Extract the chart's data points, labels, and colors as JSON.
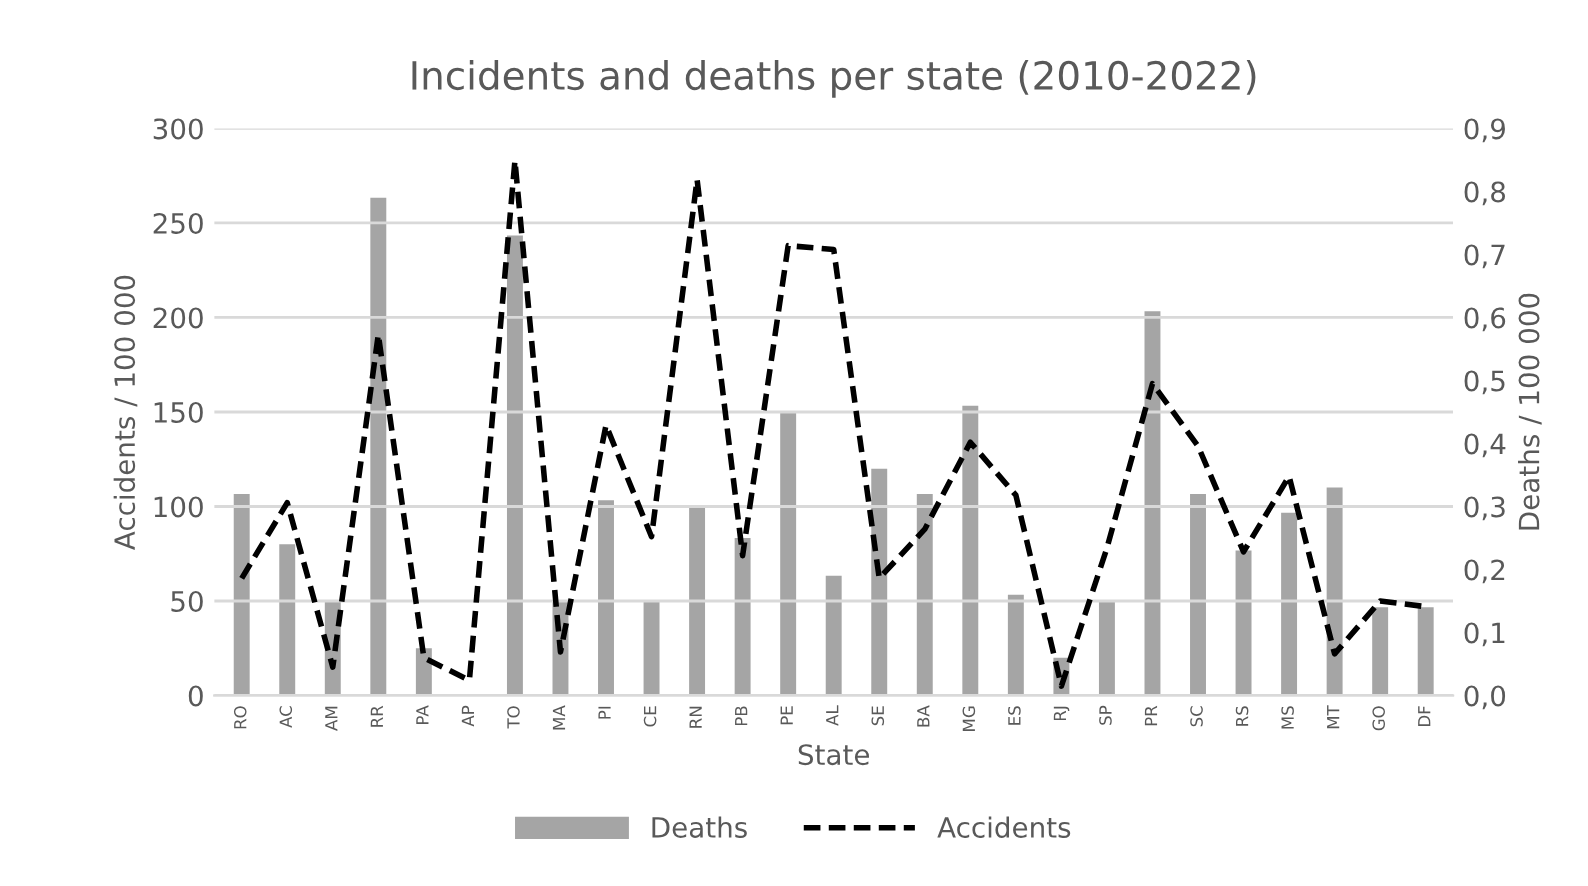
{
  "chart_data": {
    "type": "bar",
    "title": "Incidents and deaths per state (2010-2022)",
    "xlabel": "State",
    "ylabel": "Accidents / 100 000",
    "y2label": "Deaths / 100 000",
    "categories": [
      "RO",
      "AC",
      "AM",
      "RR",
      "PA",
      "AP",
      "TO",
      "MA",
      "PI",
      "CE",
      "RN",
      "PB",
      "PE",
      "AL",
      "SE",
      "BA",
      "MG",
      "ES",
      "RJ",
      "SP",
      "PR",
      "SC",
      "RS",
      "MS",
      "MT",
      "GO",
      "DF"
    ],
    "series": [
      {
        "name": "Deaths",
        "axis": "y2",
        "color": "#a5a5a5",
        "values": [
          0.32,
          0.24,
          0.15,
          0.79,
          0.075,
          0,
          0.73,
          0.15,
          0.31,
          0.15,
          0.3,
          0.25,
          0.45,
          0.19,
          0.36,
          0.32,
          0.46,
          0.16,
          0.06,
          0.15,
          0.61,
          0.32,
          0.23,
          0.29,
          0.33,
          0.14,
          0.14
        ]
      },
      {
        "name": "Accidents",
        "type": "line",
        "axis": "y",
        "color": "#000000",
        "line_style": "dashed",
        "values": [
          62,
          102,
          15,
          191,
          20,
          8,
          283,
          23,
          143,
          84,
          273,
          74,
          238,
          236,
          62,
          88,
          134,
          106,
          5,
          78,
          165,
          132,
          76,
          116,
          22,
          50,
          47
        ]
      }
    ],
    "ylim": [
      0,
      300
    ],
    "yticks": [
      0,
      50,
      100,
      150,
      200,
      250,
      300
    ],
    "y2lim": [
      0,
      0.9
    ],
    "y2ticks": [
      {
        "value": 0,
        "label": "0,0"
      },
      {
        "value": 0.1,
        "label": "0,1"
      },
      {
        "value": 0.2,
        "label": "0,2"
      },
      {
        "value": 0.3,
        "label": "0,3"
      },
      {
        "value": 0.4,
        "label": "0,4"
      },
      {
        "value": 0.5,
        "label": "0,5"
      },
      {
        "value": 0.6,
        "label": "0,6"
      },
      {
        "value": 0.7,
        "label": "0,7"
      },
      {
        "value": 0.8,
        "label": "0,8"
      },
      {
        "value": 0.9,
        "label": "0,9"
      }
    ],
    "grid": "y",
    "legend": "bottom"
  }
}
